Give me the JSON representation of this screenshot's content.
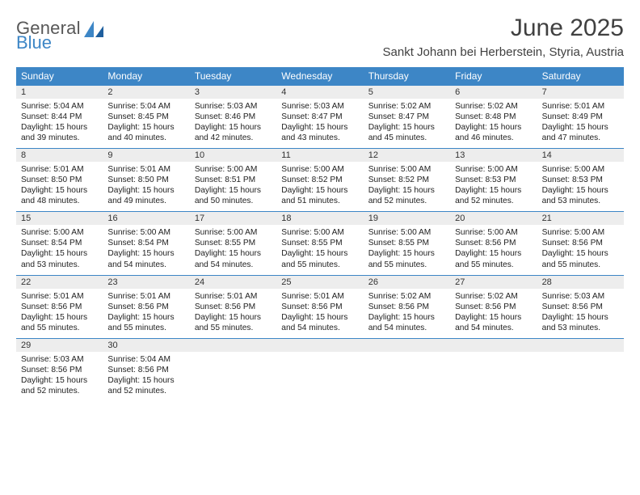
{
  "brand": {
    "general": "General",
    "blue": "Blue"
  },
  "title": {
    "month": "June 2025",
    "location": "Sankt Johann bei Herberstein, Styria, Austria"
  },
  "colors": {
    "accent": "#3d86c6",
    "header_text": "#404040",
    "dayband": "#ededed",
    "body_text": "#222222"
  },
  "dow": [
    "Sunday",
    "Monday",
    "Tuesday",
    "Wednesday",
    "Thursday",
    "Friday",
    "Saturday"
  ],
  "weeks": [
    [
      {
        "n": "1",
        "sr": "Sunrise: 5:04 AM",
        "ss": "Sunset: 8:44 PM",
        "d1": "Daylight: 15 hours",
        "d2": "and 39 minutes."
      },
      {
        "n": "2",
        "sr": "Sunrise: 5:04 AM",
        "ss": "Sunset: 8:45 PM",
        "d1": "Daylight: 15 hours",
        "d2": "and 40 minutes."
      },
      {
        "n": "3",
        "sr": "Sunrise: 5:03 AM",
        "ss": "Sunset: 8:46 PM",
        "d1": "Daylight: 15 hours",
        "d2": "and 42 minutes."
      },
      {
        "n": "4",
        "sr": "Sunrise: 5:03 AM",
        "ss": "Sunset: 8:47 PM",
        "d1": "Daylight: 15 hours",
        "d2": "and 43 minutes."
      },
      {
        "n": "5",
        "sr": "Sunrise: 5:02 AM",
        "ss": "Sunset: 8:47 PM",
        "d1": "Daylight: 15 hours",
        "d2": "and 45 minutes."
      },
      {
        "n": "6",
        "sr": "Sunrise: 5:02 AM",
        "ss": "Sunset: 8:48 PM",
        "d1": "Daylight: 15 hours",
        "d2": "and 46 minutes."
      },
      {
        "n": "7",
        "sr": "Sunrise: 5:01 AM",
        "ss": "Sunset: 8:49 PM",
        "d1": "Daylight: 15 hours",
        "d2": "and 47 minutes."
      }
    ],
    [
      {
        "n": "8",
        "sr": "Sunrise: 5:01 AM",
        "ss": "Sunset: 8:50 PM",
        "d1": "Daylight: 15 hours",
        "d2": "and 48 minutes."
      },
      {
        "n": "9",
        "sr": "Sunrise: 5:01 AM",
        "ss": "Sunset: 8:50 PM",
        "d1": "Daylight: 15 hours",
        "d2": "and 49 minutes."
      },
      {
        "n": "10",
        "sr": "Sunrise: 5:00 AM",
        "ss": "Sunset: 8:51 PM",
        "d1": "Daylight: 15 hours",
        "d2": "and 50 minutes."
      },
      {
        "n": "11",
        "sr": "Sunrise: 5:00 AM",
        "ss": "Sunset: 8:52 PM",
        "d1": "Daylight: 15 hours",
        "d2": "and 51 minutes."
      },
      {
        "n": "12",
        "sr": "Sunrise: 5:00 AM",
        "ss": "Sunset: 8:52 PM",
        "d1": "Daylight: 15 hours",
        "d2": "and 52 minutes."
      },
      {
        "n": "13",
        "sr": "Sunrise: 5:00 AM",
        "ss": "Sunset: 8:53 PM",
        "d1": "Daylight: 15 hours",
        "d2": "and 52 minutes."
      },
      {
        "n": "14",
        "sr": "Sunrise: 5:00 AM",
        "ss": "Sunset: 8:53 PM",
        "d1": "Daylight: 15 hours",
        "d2": "and 53 minutes."
      }
    ],
    [
      {
        "n": "15",
        "sr": "Sunrise: 5:00 AM",
        "ss": "Sunset: 8:54 PM",
        "d1": "Daylight: 15 hours",
        "d2": "and 53 minutes."
      },
      {
        "n": "16",
        "sr": "Sunrise: 5:00 AM",
        "ss": "Sunset: 8:54 PM",
        "d1": "Daylight: 15 hours",
        "d2": "and 54 minutes."
      },
      {
        "n": "17",
        "sr": "Sunrise: 5:00 AM",
        "ss": "Sunset: 8:55 PM",
        "d1": "Daylight: 15 hours",
        "d2": "and 54 minutes."
      },
      {
        "n": "18",
        "sr": "Sunrise: 5:00 AM",
        "ss": "Sunset: 8:55 PM",
        "d1": "Daylight: 15 hours",
        "d2": "and 55 minutes."
      },
      {
        "n": "19",
        "sr": "Sunrise: 5:00 AM",
        "ss": "Sunset: 8:55 PM",
        "d1": "Daylight: 15 hours",
        "d2": "and 55 minutes."
      },
      {
        "n": "20",
        "sr": "Sunrise: 5:00 AM",
        "ss": "Sunset: 8:56 PM",
        "d1": "Daylight: 15 hours",
        "d2": "and 55 minutes."
      },
      {
        "n": "21",
        "sr": "Sunrise: 5:00 AM",
        "ss": "Sunset: 8:56 PM",
        "d1": "Daylight: 15 hours",
        "d2": "and 55 minutes."
      }
    ],
    [
      {
        "n": "22",
        "sr": "Sunrise: 5:01 AM",
        "ss": "Sunset: 8:56 PM",
        "d1": "Daylight: 15 hours",
        "d2": "and 55 minutes."
      },
      {
        "n": "23",
        "sr": "Sunrise: 5:01 AM",
        "ss": "Sunset: 8:56 PM",
        "d1": "Daylight: 15 hours",
        "d2": "and 55 minutes."
      },
      {
        "n": "24",
        "sr": "Sunrise: 5:01 AM",
        "ss": "Sunset: 8:56 PM",
        "d1": "Daylight: 15 hours",
        "d2": "and 55 minutes."
      },
      {
        "n": "25",
        "sr": "Sunrise: 5:01 AM",
        "ss": "Sunset: 8:56 PM",
        "d1": "Daylight: 15 hours",
        "d2": "and 54 minutes."
      },
      {
        "n": "26",
        "sr": "Sunrise: 5:02 AM",
        "ss": "Sunset: 8:56 PM",
        "d1": "Daylight: 15 hours",
        "d2": "and 54 minutes."
      },
      {
        "n": "27",
        "sr": "Sunrise: 5:02 AM",
        "ss": "Sunset: 8:56 PM",
        "d1": "Daylight: 15 hours",
        "d2": "and 54 minutes."
      },
      {
        "n": "28",
        "sr": "Sunrise: 5:03 AM",
        "ss": "Sunset: 8:56 PM",
        "d1": "Daylight: 15 hours",
        "d2": "and 53 minutes."
      }
    ],
    [
      {
        "n": "29",
        "sr": "Sunrise: 5:03 AM",
        "ss": "Sunset: 8:56 PM",
        "d1": "Daylight: 15 hours",
        "d2": "and 52 minutes."
      },
      {
        "n": "30",
        "sr": "Sunrise: 5:04 AM",
        "ss": "Sunset: 8:56 PM",
        "d1": "Daylight: 15 hours",
        "d2": "and 52 minutes."
      },
      {
        "n": "",
        "sr": "",
        "ss": "",
        "d1": "",
        "d2": ""
      },
      {
        "n": "",
        "sr": "",
        "ss": "",
        "d1": "",
        "d2": ""
      },
      {
        "n": "",
        "sr": "",
        "ss": "",
        "d1": "",
        "d2": ""
      },
      {
        "n": "",
        "sr": "",
        "ss": "",
        "d1": "",
        "d2": ""
      },
      {
        "n": "",
        "sr": "",
        "ss": "",
        "d1": "",
        "d2": ""
      }
    ]
  ]
}
